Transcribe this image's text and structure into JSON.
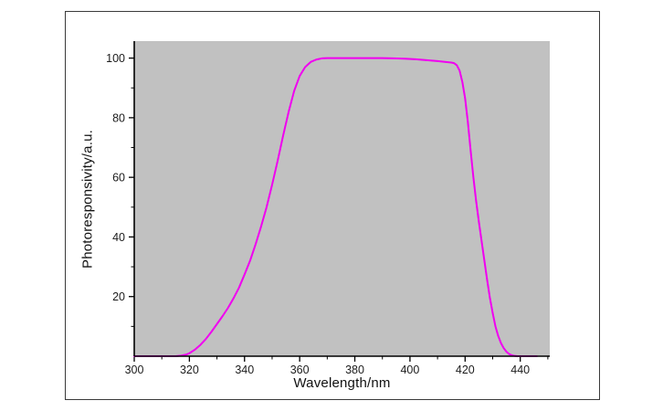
{
  "figure": {
    "page_bg": "#ffffff",
    "frame_border_color": "#3a3a3a",
    "plot_bg": "#c1c1c1",
    "axis_color": "#000000",
    "tick_text_color": "#1c1c1c",
    "curve_color": "#f000f0"
  },
  "chart_data": {
    "type": "line",
    "title": "",
    "xlabel": "Wavelength/nm",
    "ylabel": "Photoresponsivity/a.u.",
    "xlim": [
      300,
      450.7
    ],
    "ylim": [
      0,
      105.7
    ],
    "grid": false,
    "legend": null,
    "x_major_ticks": [
      300,
      320,
      340,
      360,
      380,
      400,
      420,
      440
    ],
    "x_major_tick_labels": [
      "300",
      "320",
      "340",
      "360",
      "380",
      "400",
      "420",
      "440"
    ],
    "x_minor_ticks": [
      310,
      330,
      350,
      370,
      390,
      410,
      430,
      450
    ],
    "y_major_ticks": [
      20,
      40,
      60,
      80,
      100
    ],
    "y_major_tick_labels": [
      "20",
      "40",
      "60",
      "80",
      "100"
    ],
    "y_minor_ticks": [
      10,
      30,
      50,
      70,
      90
    ],
    "series": [
      {
        "name": "photoresponsivity",
        "color": "#f000f0",
        "line_width": 2,
        "x": [
          300,
          304,
          308,
          312,
          315,
          317,
          319,
          320,
          322,
          324,
          326,
          328,
          330,
          332,
          334,
          336,
          338,
          340,
          342,
          344,
          346,
          348,
          350,
          352,
          354,
          356,
          358,
          360,
          362,
          364,
          366,
          368,
          370,
          374,
          378,
          382,
          386,
          390,
          394,
          398,
          402,
          406,
          410,
          413,
          415,
          416,
          417,
          418,
          419,
          420,
          421,
          422,
          423,
          424,
          425,
          426,
          427,
          428,
          429,
          430,
          431,
          432,
          433,
          434,
          435,
          436,
          437,
          438,
          439,
          441,
          444,
          446
        ],
        "y": [
          0,
          0,
          0,
          0,
          0,
          0.2,
          0.6,
          1.0,
          2.2,
          3.8,
          5.8,
          8.2,
          10.8,
          13.4,
          16.2,
          19.4,
          23.0,
          27.4,
          32.0,
          37.5,
          43.5,
          50.0,
          57.5,
          65.5,
          74.0,
          82.0,
          89.0,
          94.0,
          97.0,
          98.7,
          99.5,
          99.9,
          100,
          100,
          100,
          100,
          100,
          100,
          99.9,
          99.8,
          99.6,
          99.3,
          99.0,
          98.7,
          98.5,
          98.3,
          97.6,
          95.8,
          92.0,
          86.5,
          78.5,
          69.0,
          60.0,
          52.0,
          45.0,
          38.5,
          32.0,
          25.5,
          19.5,
          14.5,
          10.0,
          6.8,
          4.4,
          2.7,
          1.5,
          0.7,
          0.3,
          0.1,
          0,
          0,
          0,
          0
        ]
      }
    ]
  }
}
